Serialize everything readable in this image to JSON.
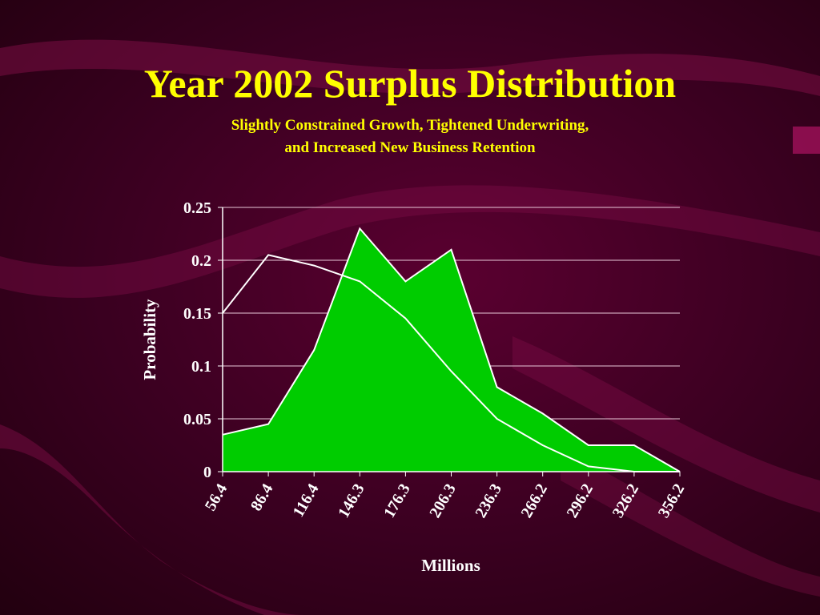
{
  "slide": {
    "title": "Year 2002 Surplus Distribution",
    "subtitle_line1": "Slightly Constrained Growth, Tightened Underwriting,",
    "subtitle_line2": "and Increased New Business Retention"
  },
  "colors": {
    "title_text": "#ffff00",
    "axis_text": "#ffffff",
    "area_fill": "#00cc00",
    "line": "#ffffff",
    "background": "#3a0020",
    "swoosh": "#7a0c44"
  },
  "chart_data": {
    "type": "area",
    "xlabel": "Millions",
    "ylabel": "Probability",
    "categories": [
      "56.4",
      "86.4",
      "116.4",
      "146.3",
      "176.3",
      "206.3",
      "236.3",
      "266.2",
      "296.2",
      "326.2",
      "356.2"
    ],
    "ylim": [
      0,
      0.25
    ],
    "yticks": [
      "0",
      "0.05",
      "0.1",
      "0.15",
      "0.2",
      "0.25"
    ],
    "grid": true,
    "series": [
      {
        "style": "area",
        "values": [
          0.035,
          0.045,
          0.115,
          0.23,
          0.18,
          0.21,
          0.08,
          0.055,
          0.025,
          0.025,
          0.0
        ]
      },
      {
        "style": "line",
        "values": [
          0.15,
          0.205,
          0.195,
          0.18,
          0.145,
          0.095,
          0.05,
          0.025,
          0.005,
          0.0,
          0.0
        ]
      }
    ]
  }
}
